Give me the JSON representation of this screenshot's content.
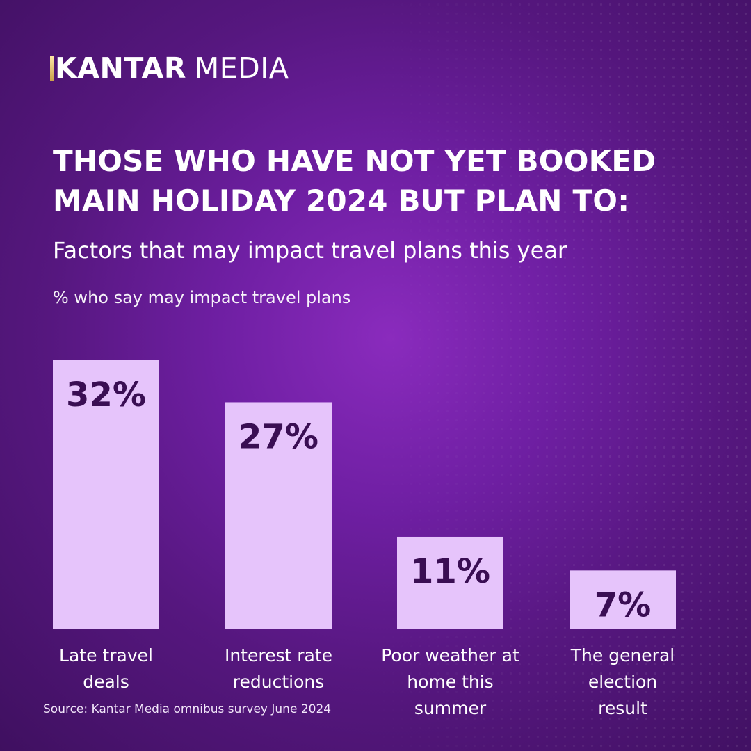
{
  "brand": {
    "name_bold": "KANTAR",
    "name_regular": "MEDIA",
    "accent_color": "#d9b65c"
  },
  "colors": {
    "background": "#6f1fa3",
    "bar_fill": "#e6c4fb",
    "value_text": "#3a0e53"
  },
  "chart_data": {
    "type": "bar",
    "title": "THOSE WHO HAVE NOT YET BOOKED MAIN HOLIDAY 2024 BUT PLAN TO:",
    "subtitle": "Factors that may impact travel plans this year",
    "ylabel": "% who say may impact travel plans",
    "xlabel": "",
    "categories": [
      [
        "Late travel",
        "deals"
      ],
      [
        "Interest rate",
        "reductions"
      ],
      [
        "Poor weather at",
        "home this",
        "summer"
      ],
      [
        "The general",
        "election",
        "result"
      ]
    ],
    "values": [
      32,
      27,
      11,
      7
    ],
    "value_labels": [
      "32%",
      "27%",
      "11%",
      "7%"
    ],
    "ylim": [
      0,
      32
    ],
    "grid": false,
    "legend": "none"
  },
  "footer": {
    "source": "Source: Kantar Media omnibus survey June 2024"
  }
}
